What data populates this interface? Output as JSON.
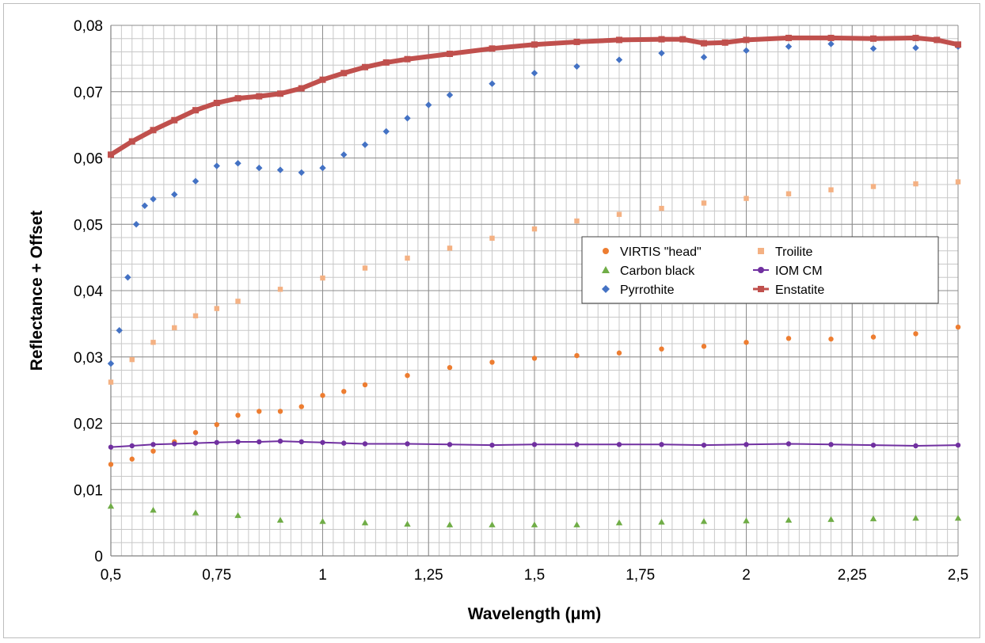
{
  "chart_data": {
    "type": "scatter",
    "title": "",
    "xlabel": "Wavelength (μm)",
    "ylabel": "Reflectance + Offset",
    "xlim": [
      0.5,
      2.5
    ],
    "ylim": [
      0,
      0.08
    ],
    "xticks": [
      0.5,
      0.75,
      1,
      1.25,
      1.5,
      1.75,
      2,
      2.25,
      2.5
    ],
    "xtick_labels": [
      "0,5",
      "0,75",
      "1",
      "1,25",
      "1,5",
      "1,75",
      "2",
      "2,25",
      "2,5"
    ],
    "yticks": [
      0,
      0.01,
      0.02,
      0.03,
      0.04,
      0.05,
      0.06,
      0.07,
      0.08
    ],
    "ytick_labels": [
      "0",
      "0,01",
      "0,02",
      "0,03",
      "0,04",
      "0,05",
      "0,06",
      "0,07",
      "0,08"
    ],
    "grid": true,
    "legend_position": "right",
    "series": [
      {
        "name": "VIRTIS \"head\"",
        "color": "#ED7D31",
        "marker": "circle",
        "line": false,
        "x": [
          0.5,
          0.55,
          0.6,
          0.65,
          0.7,
          0.75,
          0.8,
          0.85,
          0.9,
          0.95,
          1.0,
          1.05,
          1.1,
          1.2,
          1.3,
          1.4,
          1.5,
          1.6,
          1.7,
          1.8,
          1.9,
          2.0,
          2.1,
          2.2,
          2.3,
          2.4,
          2.5
        ],
        "y": [
          0.0138,
          0.0146,
          0.0158,
          0.0172,
          0.0186,
          0.0198,
          0.0212,
          0.0218,
          0.0218,
          0.0225,
          0.0242,
          0.0248,
          0.0258,
          0.0272,
          0.0284,
          0.0292,
          0.0298,
          0.0302,
          0.0306,
          0.0312,
          0.0316,
          0.0322,
          0.0328,
          0.0327,
          0.033,
          0.0335,
          0.0345
        ]
      },
      {
        "name": "Troilite",
        "color": "#F4B183",
        "marker": "square",
        "line": false,
        "x": [
          0.5,
          0.55,
          0.6,
          0.65,
          0.7,
          0.75,
          0.8,
          0.9,
          1.0,
          1.1,
          1.2,
          1.3,
          1.4,
          1.5,
          1.6,
          1.7,
          1.8,
          1.9,
          2.0,
          2.1,
          2.2,
          2.3,
          2.4,
          2.5
        ],
        "y": [
          0.0262,
          0.0296,
          0.0322,
          0.0344,
          0.0362,
          0.0373,
          0.0384,
          0.0402,
          0.0419,
          0.0434,
          0.0449,
          0.0464,
          0.0479,
          0.0493,
          0.0505,
          0.0515,
          0.0524,
          0.0532,
          0.0539,
          0.0546,
          0.0552,
          0.0557,
          0.0561,
          0.0564
        ]
      },
      {
        "name": "Carbon black",
        "color": "#70AD47",
        "marker": "triangle",
        "line": false,
        "x": [
          0.5,
          0.6,
          0.7,
          0.8,
          0.9,
          1.0,
          1.1,
          1.2,
          1.3,
          1.4,
          1.5,
          1.6,
          1.7,
          1.8,
          1.9,
          2.0,
          2.1,
          2.2,
          2.3,
          2.4,
          2.5
        ],
        "y": [
          0.0075,
          0.0069,
          0.0065,
          0.0061,
          0.0054,
          0.0052,
          0.005,
          0.0048,
          0.0047,
          0.0047,
          0.0047,
          0.0047,
          0.005,
          0.0051,
          0.0052,
          0.0053,
          0.0054,
          0.0055,
          0.0056,
          0.0057,
          0.0057
        ]
      },
      {
        "name": "IOM CM",
        "color": "#7030A0",
        "marker": "circle",
        "line": true,
        "x": [
          0.5,
          0.55,
          0.6,
          0.65,
          0.7,
          0.75,
          0.8,
          0.85,
          0.9,
          0.95,
          1.0,
          1.05,
          1.1,
          1.2,
          1.3,
          1.4,
          1.5,
          1.6,
          1.7,
          1.8,
          1.9,
          2.0,
          2.1,
          2.2,
          2.3,
          2.4,
          2.5
        ],
        "y": [
          0.0164,
          0.0166,
          0.0168,
          0.0169,
          0.017,
          0.0171,
          0.0172,
          0.0172,
          0.0173,
          0.0172,
          0.0171,
          0.017,
          0.0169,
          0.0169,
          0.0168,
          0.0167,
          0.0168,
          0.0168,
          0.0168,
          0.0168,
          0.0167,
          0.0168,
          0.0169,
          0.0168,
          0.0167,
          0.0166,
          0.0167
        ]
      },
      {
        "name": "Pyrrothite",
        "color": "#4472C4",
        "marker": "diamond",
        "line": false,
        "x": [
          0.5,
          0.52,
          0.54,
          0.56,
          0.58,
          0.6,
          0.65,
          0.7,
          0.75,
          0.8,
          0.85,
          0.9,
          0.95,
          1.0,
          1.05,
          1.1,
          1.15,
          1.2,
          1.25,
          1.3,
          1.4,
          1.5,
          1.6,
          1.7,
          1.8,
          1.9,
          2.0,
          2.1,
          2.2,
          2.3,
          2.4,
          2.5
        ],
        "y": [
          0.029,
          0.034,
          0.042,
          0.05,
          0.0528,
          0.0538,
          0.0545,
          0.0565,
          0.0588,
          0.0592,
          0.0585,
          0.0582,
          0.0578,
          0.0585,
          0.0605,
          0.062,
          0.064,
          0.066,
          0.068,
          0.0695,
          0.0712,
          0.0728,
          0.0738,
          0.0748,
          0.0758,
          0.0752,
          0.0762,
          0.0768,
          0.0772,
          0.0765,
          0.0766,
          0.0768
        ]
      },
      {
        "name": "Enstatite",
        "color": "#C0504D",
        "marker": "square",
        "line": true,
        "x": [
          0.5,
          0.55,
          0.6,
          0.65,
          0.7,
          0.75,
          0.8,
          0.85,
          0.9,
          0.95,
          1.0,
          1.05,
          1.1,
          1.15,
          1.2,
          1.3,
          1.4,
          1.5,
          1.6,
          1.7,
          1.8,
          1.85,
          1.9,
          1.95,
          2.0,
          2.1,
          2.2,
          2.3,
          2.4,
          2.45,
          2.5
        ],
        "y": [
          0.0605,
          0.0625,
          0.0642,
          0.0657,
          0.0672,
          0.0683,
          0.069,
          0.0693,
          0.0697,
          0.0705,
          0.0718,
          0.0728,
          0.0737,
          0.0744,
          0.0749,
          0.0757,
          0.0765,
          0.0771,
          0.0775,
          0.0778,
          0.0779,
          0.0779,
          0.0773,
          0.0774,
          0.0778,
          0.0781,
          0.0781,
          0.078,
          0.0781,
          0.0778,
          0.0771
        ]
      }
    ]
  }
}
